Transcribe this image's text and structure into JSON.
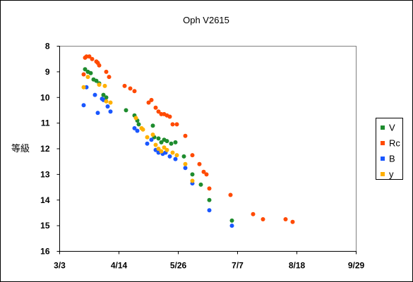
{
  "chart_data": {
    "type": "scatter",
    "title": "Oph V2615",
    "ylabel": "等級",
    "xlabel": "",
    "x_tick_labels": [
      "3/3",
      "4/14",
      "5/26",
      "7/7",
      "8/18",
      "9/29"
    ],
    "x_ticks_days": [
      0,
      42,
      84,
      126,
      168,
      210
    ],
    "xlim_days": [
      0,
      210
    ],
    "y_tick_labels": [
      "8",
      "9",
      "10",
      "11",
      "12",
      "13",
      "14",
      "15",
      "16"
    ],
    "ylim": [
      8,
      16
    ],
    "y_inverted": true,
    "grid": false,
    "legend_position": "right",
    "series": [
      {
        "name": "V",
        "color": "#1e8c2e",
        "points": [
          [
            18,
            8.9
          ],
          [
            20,
            9.0
          ],
          [
            22,
            9.05
          ],
          [
            24,
            9.3
          ],
          [
            26,
            9.35
          ],
          [
            28,
            9.45
          ],
          [
            31,
            9.9
          ],
          [
            33,
            10.0
          ],
          [
            47,
            10.5
          ],
          [
            53,
            10.7
          ],
          [
            55,
            10.9
          ],
          [
            56,
            11.05
          ],
          [
            66,
            11.1
          ],
          [
            67,
            11.55
          ],
          [
            70,
            11.6
          ],
          [
            72,
            11.75
          ],
          [
            74,
            11.65
          ],
          [
            76,
            11.7
          ],
          [
            79,
            11.8
          ],
          [
            82,
            11.75
          ],
          [
            88,
            12.3
          ],
          [
            94,
            13.0
          ],
          [
            100,
            13.4
          ],
          [
            106,
            14.0
          ],
          [
            122,
            14.8
          ]
        ]
      },
      {
        "name": "Rc",
        "color": "#ff4a00",
        "points": [
          [
            18,
            8.45
          ],
          [
            19,
            8.4
          ],
          [
            21,
            8.4
          ],
          [
            23,
            8.5
          ],
          [
            26,
            8.6
          ],
          [
            27,
            8.65
          ],
          [
            28,
            8.75
          ],
          [
            33,
            9.0
          ],
          [
            35,
            9.2
          ],
          [
            17,
            9.1
          ],
          [
            46,
            9.55
          ],
          [
            50,
            9.65
          ],
          [
            53,
            9.75
          ],
          [
            63,
            10.2
          ],
          [
            65,
            10.1
          ],
          [
            68,
            10.4
          ],
          [
            70,
            10.55
          ],
          [
            72,
            10.65
          ],
          [
            74,
            10.65
          ],
          [
            76,
            10.7
          ],
          [
            78,
            10.75
          ],
          [
            80,
            11.05
          ],
          [
            83,
            11.05
          ],
          [
            89,
            11.5
          ],
          [
            94,
            12.25
          ],
          [
            99,
            12.6
          ],
          [
            102,
            12.9
          ],
          [
            104,
            13.0
          ],
          [
            106,
            13.55
          ],
          [
            121,
            13.8
          ],
          [
            137,
            14.55
          ],
          [
            144,
            14.75
          ],
          [
            160,
            14.75
          ],
          [
            165,
            14.85
          ]
        ]
      },
      {
        "name": "B",
        "color": "#1a57ff",
        "points": [
          [
            17,
            10.3
          ],
          [
            19,
            9.6
          ],
          [
            25,
            9.9
          ],
          [
            27,
            10.6
          ],
          [
            30,
            10.05
          ],
          [
            31,
            10.1
          ],
          [
            34,
            10.35
          ],
          [
            36,
            10.55
          ],
          [
            53,
            11.2
          ],
          [
            55,
            11.3
          ],
          [
            62,
            11.8
          ],
          [
            65,
            11.65
          ],
          [
            68,
            12.05
          ],
          [
            70,
            12.15
          ],
          [
            73,
            12.2
          ],
          [
            75,
            12.15
          ],
          [
            78,
            12.3
          ],
          [
            82,
            12.4
          ],
          [
            89,
            12.75
          ],
          [
            94,
            13.35
          ],
          [
            106,
            14.4
          ],
          [
            122,
            15.0
          ]
        ]
      },
      {
        "name": "y",
        "color": "#ffb000",
        "points": [
          [
            17,
            9.6
          ],
          [
            20,
            9.2
          ],
          [
            28,
            9.5
          ],
          [
            32,
            9.55
          ],
          [
            33,
            10.15
          ],
          [
            36,
            10.2
          ],
          [
            54,
            10.8
          ],
          [
            58,
            11.2
          ],
          [
            59,
            11.25
          ],
          [
            62,
            11.55
          ],
          [
            66,
            11.45
          ],
          [
            68,
            11.85
          ],
          [
            70,
            12.0
          ],
          [
            72,
            12.1
          ],
          [
            74,
            11.95
          ],
          [
            76,
            12.05
          ],
          [
            80,
            12.15
          ],
          [
            83,
            12.25
          ],
          [
            89,
            12.6
          ],
          [
            94,
            13.25
          ]
        ]
      }
    ]
  }
}
